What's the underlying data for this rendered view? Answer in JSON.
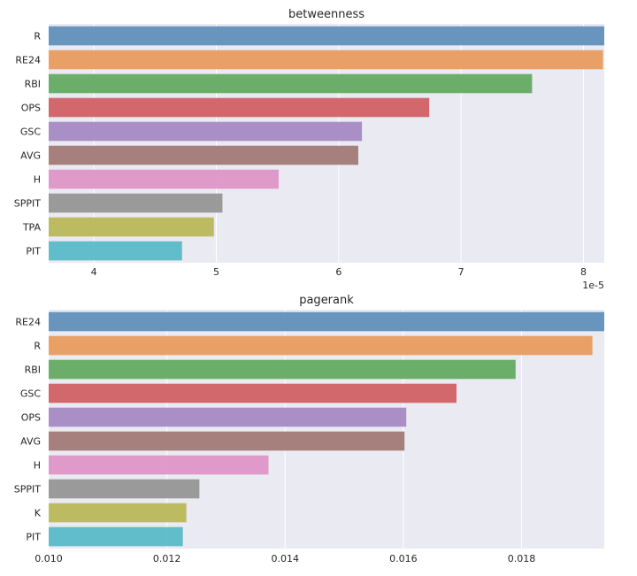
{
  "chart_data": [
    {
      "type": "bar",
      "orientation": "horizontal",
      "title": "betweenness",
      "xlabel": "",
      "ylabel": "",
      "x_offset_label": "1e-5",
      "categories": [
        "R",
        "RE24",
        "RBI",
        "OPS",
        "GSC",
        "AVG",
        "H",
        "SPPIT",
        "TPA",
        "PIT"
      ],
      "values": [
        8.17,
        8.16,
        7.58,
        6.74,
        6.19,
        6.16,
        5.51,
        5.05,
        4.98,
        4.72
      ],
      "xlim": [
        3.63,
        8.17
      ],
      "xticks": [
        4,
        5,
        6,
        7,
        8
      ],
      "xtick_labels": [
        "4",
        "5",
        "6",
        "7",
        "8"
      ],
      "grid": true,
      "colors": [
        "#5b8db8",
        "#e8995a",
        "#5ea85e",
        "#cf5c60",
        "#a387c1",
        "#9f7673",
        "#dd93c5",
        "#929292",
        "#b9b655",
        "#56b8c8"
      ]
    },
    {
      "type": "bar",
      "orientation": "horizontal",
      "title": "pagerank",
      "xlabel": "",
      "ylabel": "",
      "categories": [
        "RE24",
        "R",
        "RBI",
        "GSC",
        "OPS",
        "AVG",
        "H",
        "SPPIT",
        "K",
        "PIT"
      ],
      "values": [
        0.0194,
        0.0192,
        0.0179,
        0.0169,
        0.01605,
        0.01602,
        0.01372,
        0.01255,
        0.01233,
        0.01227
      ],
      "xlim": [
        0.01,
        0.0194
      ],
      "xticks": [
        0.01,
        0.012,
        0.014,
        0.016,
        0.018
      ],
      "xtick_labels": [
        "0.010",
        "0.012",
        "0.014",
        "0.016",
        "0.018"
      ],
      "grid": true,
      "colors": [
        "#5b8db8",
        "#e8995a",
        "#5ea85e",
        "#cf5c60",
        "#a387c1",
        "#9f7673",
        "#dd93c5",
        "#929292",
        "#b9b655",
        "#56b8c8"
      ]
    }
  ]
}
